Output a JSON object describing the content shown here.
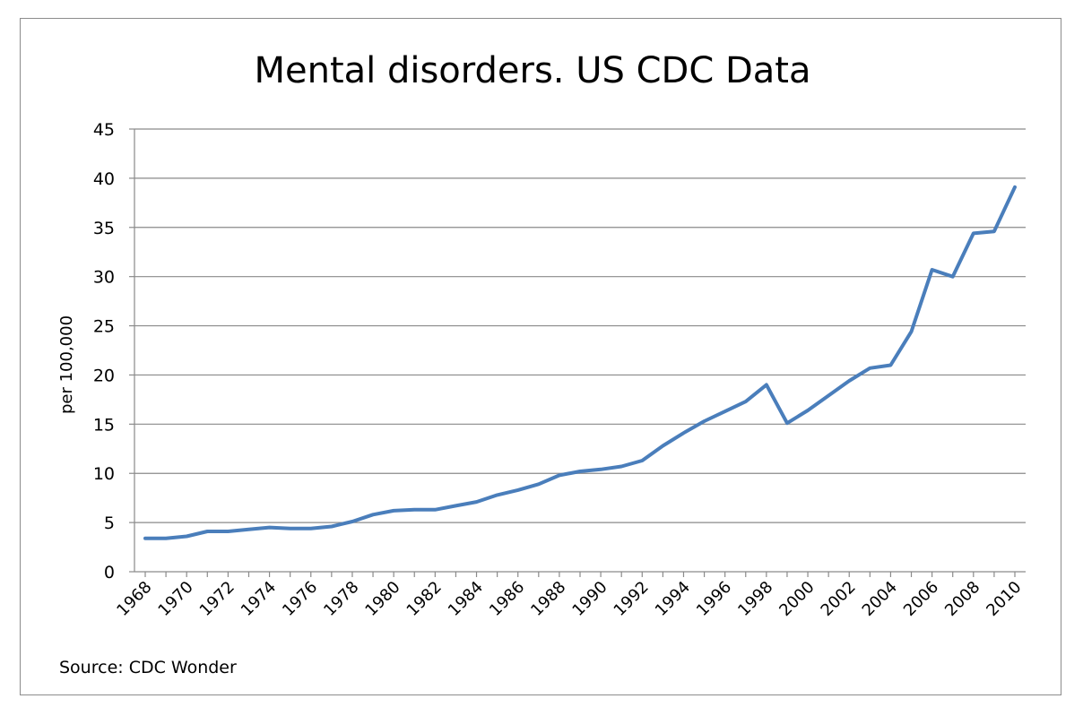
{
  "chart_data": {
    "type": "line",
    "title": "Mental disorders. US CDC Data",
    "ylabel": "per 100,000",
    "xlabel": "",
    "source": "Source:  CDC Wonder",
    "ylim": [
      0,
      45
    ],
    "y_ticks": [
      0,
      5,
      10,
      15,
      20,
      25,
      30,
      35,
      40,
      45
    ],
    "x_tick_labels": [
      "1968",
      "1970",
      "1972",
      "1974",
      "1976",
      "1978",
      "1980",
      "1982",
      "1984",
      "1986",
      "1988",
      "1990",
      "1992",
      "1994",
      "1996",
      "1998",
      "2000",
      "2002",
      "2004",
      "2006",
      "2008",
      "2010"
    ],
    "grid": true,
    "line_color": "#4a7ebb",
    "series": [
      {
        "x": [
          1968,
          1969,
          1970,
          1971,
          1972,
          1973,
          1974,
          1975,
          1976,
          1977,
          1978,
          1979,
          1980,
          1981,
          1982,
          1983,
          1984,
          1985,
          1986,
          1987,
          1988,
          1989,
          1990,
          1991,
          1992,
          1993,
          1994,
          1995,
          1996,
          1997,
          1998,
          1999,
          2000,
          2001,
          2002,
          2003,
          2004,
          2005,
          2006,
          2007,
          2008,
          2009,
          2010
        ],
        "values": [
          3.4,
          3.4,
          3.6,
          4.1,
          4.1,
          4.3,
          4.5,
          4.4,
          4.4,
          4.6,
          5.1,
          5.8,
          6.2,
          6.3,
          6.3,
          6.7,
          7.1,
          7.8,
          8.3,
          8.9,
          9.8,
          10.2,
          10.4,
          10.7,
          11.3,
          12.8,
          14.1,
          15.3,
          16.3,
          17.3,
          19.0,
          15.1,
          16.4,
          17.9,
          19.4,
          20.7,
          21.0,
          24.4,
          30.7,
          30.0,
          34.4,
          34.6,
          39.1
        ]
      }
    ]
  }
}
